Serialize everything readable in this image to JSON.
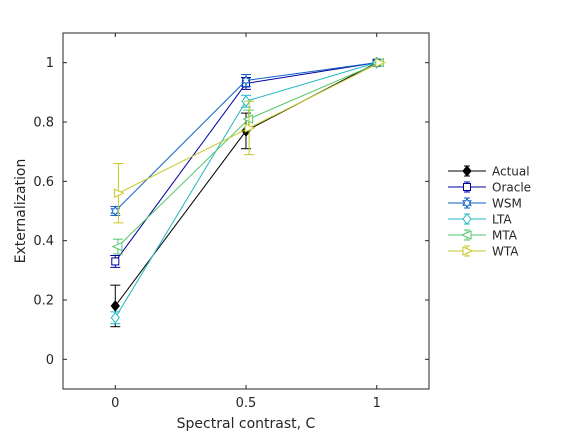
{
  "chart_data": {
    "type": "line",
    "xlabel": "Spectral contrast, C",
    "ylabel": "Externalization",
    "x": [
      0,
      0.5,
      1
    ],
    "xlim": [
      -0.2,
      1.2
    ],
    "ylim": [
      -0.1,
      1.1
    ],
    "xticks": [
      0,
      0.5,
      1
    ],
    "yticks": [
      0,
      0.2,
      0.4,
      0.6,
      0.8,
      1
    ],
    "xtick_labels": [
      "0",
      "0.5",
      "1"
    ],
    "ytick_labels": [
      "0",
      "0.2",
      "0.4",
      "0.6",
      "0.8",
      "1"
    ],
    "grid": false,
    "legend_position": "outside-right",
    "series": [
      {
        "name": "Actual",
        "color": "#000000",
        "marker": "diamond",
        "x_offset": 0,
        "values": [
          0.18,
          0.77,
          1.0
        ],
        "err": [
          0.07,
          0.06,
          0.0
        ]
      },
      {
        "name": "Oracle",
        "color": "#0000a0",
        "marker": "square",
        "x_offset": 0,
        "values": [
          0.33,
          0.93,
          1.0
        ],
        "err": [
          0.02,
          0.02,
          0.0
        ]
      },
      {
        "name": "WSM",
        "color": "#0d5fc9",
        "marker": "hexagram",
        "x_offset": 0,
        "values": [
          0.5,
          0.94,
          1.0
        ],
        "err": [
          0.015,
          0.02,
          0.0
        ]
      },
      {
        "name": "LTA",
        "color": "#1fb8c4",
        "marker": "diamond-open",
        "x_offset": 0,
        "values": [
          0.14,
          0.87,
          1.0
        ],
        "err": [
          0.02,
          0.02,
          0.0
        ]
      },
      {
        "name": "MTA",
        "color": "#4fc76d",
        "marker": "triangle-left",
        "x_offset": 0.01,
        "values": [
          0.38,
          0.81,
          1.0
        ],
        "err": [
          0.025,
          0.03,
          0.0
        ]
      },
      {
        "name": "WTA",
        "color": "#c8c826",
        "marker": "triangle-right",
        "x_offset": 0.012,
        "values": [
          0.56,
          0.78,
          1.0
        ],
        "err": [
          0.1,
          0.09,
          0.0
        ]
      }
    ]
  }
}
